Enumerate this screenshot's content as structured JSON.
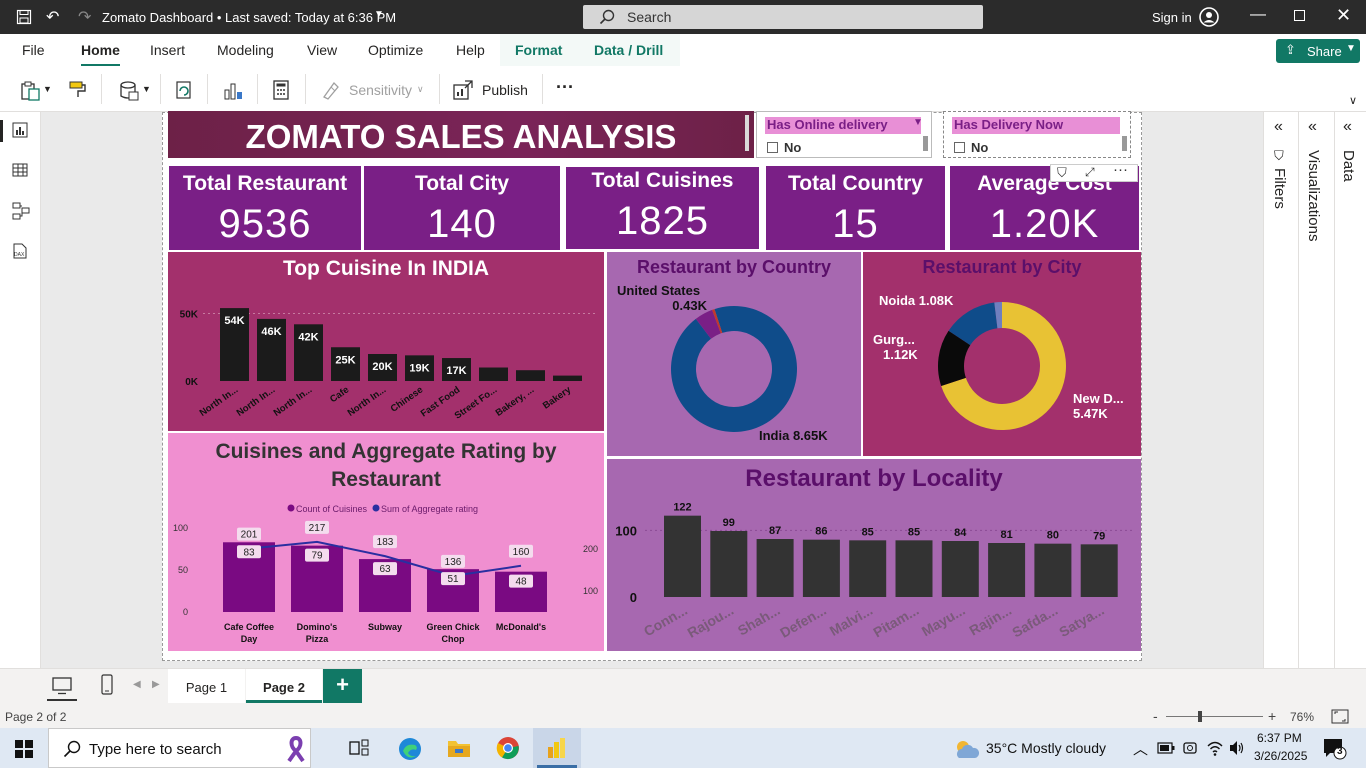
{
  "window": {
    "title": "Zomato Dashboard • Last saved: Today at 6:36 PM",
    "search_placeholder": "Search",
    "sign_in": "Sign in"
  },
  "ribbon": {
    "tabs": [
      "File",
      "Home",
      "Insert",
      "Modeling",
      "View",
      "Optimize",
      "Help",
      "Format",
      "Data / Drill"
    ],
    "active_tab": "Home",
    "sensitivity_label": "Sensitivity",
    "publish_label": "Publish",
    "more_label": "···",
    "share_label": "Share"
  },
  "panes": {
    "filters": "Filters",
    "visualizations": "Visualizations",
    "data": "Data"
  },
  "report": {
    "title": "ZOMATO SALES ANALYSIS",
    "slicers": [
      {
        "header": "Has Online delivery",
        "option": "No"
      },
      {
        "header": "Has Delivery Now",
        "option": "No"
      }
    ],
    "kpis": [
      {
        "label": "Total Restaurant",
        "value": "9536"
      },
      {
        "label": "Total City",
        "value": "140"
      },
      {
        "label": "Total Cuisines",
        "value": "1825"
      },
      {
        "label": "Total Country",
        "value": "15"
      },
      {
        "label": "Average Cost",
        "value": "1.20K"
      }
    ]
  },
  "chart_data": [
    {
      "type": "bar",
      "title": "Top Cuisine In INDIA",
      "categories": [
        "North In...",
        "North In...",
        "North In...",
        "Cafe",
        "North In...",
        "Chinese",
        "Fast Food",
        "Street Fo...",
        "Bakery, ...",
        "Bakery"
      ],
      "values": [
        54000,
        46000,
        42000,
        25000,
        20000,
        19000,
        17000,
        10000,
        8000,
        4000
      ],
      "data_labels": [
        "54K",
        "46K",
        "42K",
        "25K",
        "20K",
        "19K",
        "17K",
        "",
        "",
        ""
      ],
      "y_ticks": [
        "0K",
        "50K"
      ],
      "ylim": [
        0,
        60000
      ],
      "color": "#1b1b1b",
      "background": "#a3306c"
    },
    {
      "type": "pie",
      "title": "Restaurant by Country",
      "donut": true,
      "slices": [
        {
          "label": "India 8.65K",
          "value": 8650,
          "color": "#0f4c8a"
        },
        {
          "label": "United States 0.43K",
          "value": 430,
          "color": "#7a1f86"
        },
        {
          "label": "",
          "value": 60,
          "color": "#c0392b"
        }
      ],
      "background": "#a768b0"
    },
    {
      "type": "pie",
      "title": "Restaurant by City",
      "donut": true,
      "slices": [
        {
          "label": "New D... 5.47K",
          "value": 5470,
          "color": "#e8c234"
        },
        {
          "label": "Gurg... 1.12K",
          "value": 1120,
          "color": "#0a0a0a"
        },
        {
          "label": "Noida 1.08K",
          "value": 1080,
          "color": "#0f4c8a"
        },
        {
          "label": "",
          "value": 150,
          "color": "#6f7fbf"
        }
      ],
      "background": "#a3306c"
    },
    {
      "type": "bar",
      "title": "Cuisines and Aggregate Rating by Restaurant",
      "categories": [
        "Cafe Coffee Day",
        "Domino's Pizza",
        "Subway",
        "Green Chick Chop",
        "McDonald's"
      ],
      "series": [
        {
          "name": "Count of Cuisines",
          "values": [
            83,
            79,
            63,
            51,
            48
          ],
          "color": "#7a0a82"
        },
        {
          "name": "Sum of Aggregate rating",
          "values": [
            201,
            217,
            183,
            136,
            160
          ],
          "color": "#2a2fa0"
        }
      ],
      "y_left_ticks": [
        "0",
        "50",
        "100"
      ],
      "y_right_ticks": [
        "100",
        "200"
      ],
      "ylim_left": [
        0,
        100
      ],
      "ylim_right": [
        50,
        250
      ],
      "background": "#f08fd0"
    },
    {
      "type": "bar",
      "title": "Restaurant by Locality",
      "categories": [
        "Conn...",
        "Rajou...",
        "Shah...",
        "Defen...",
        "Malvi...",
        "Pitam...",
        "Mayu...",
        "Rajin...",
        "Safda...",
        "Satya..."
      ],
      "values": [
        122,
        99,
        87,
        86,
        85,
        85,
        84,
        81,
        80,
        79
      ],
      "y_ticks": [
        "0",
        "100"
      ],
      "ylim": [
        0,
        135
      ],
      "color": "#333333",
      "background": "#a768b0"
    }
  ],
  "pages": {
    "tabs": [
      "Page 1",
      "Page 2"
    ],
    "active": "Page 2",
    "add_label": "+"
  },
  "status": {
    "page_info": "Page 2 of 2",
    "zoom_minus": "-",
    "zoom_plus": "+",
    "zoom": "76%"
  },
  "taskbar": {
    "search_placeholder": "Type here to search",
    "weather": "35°C  Mostly cloudy",
    "time": "6:37 PM",
    "date": "3/26/2025",
    "notif_count": "3"
  },
  "colors": {
    "accent": "#117865",
    "report_purple": "#7a1f86",
    "banner": "#6d2147"
  }
}
